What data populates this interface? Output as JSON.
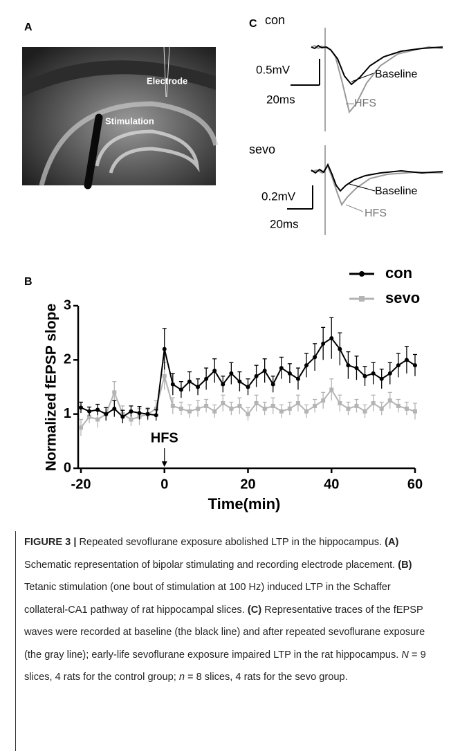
{
  "panels": {
    "a": "A",
    "b": "B",
    "c": "C"
  },
  "panel_a": {
    "labels": [
      "Electrode",
      "Stimulation"
    ]
  },
  "panel_c": {
    "con": {
      "title": "con",
      "scale_v": "0.5mV",
      "scale_t": "20ms",
      "baseline": "Baseline",
      "hfs": "HFS"
    },
    "sevo": {
      "title": "sevo",
      "scale_v": "0.2mV",
      "scale_t": "20ms",
      "baseline": "Baseline",
      "hfs": "HFS"
    }
  },
  "chart_data": {
    "type": "line",
    "x_label": "Time(min)",
    "y_label": "Normalized fEPSP slope",
    "x": [
      -20,
      -18,
      -16,
      -14,
      -12,
      -10,
      -8,
      -6,
      -4,
      -2,
      0,
      2,
      4,
      6,
      8,
      10,
      12,
      14,
      16,
      18,
      20,
      22,
      24,
      26,
      28,
      30,
      32,
      34,
      36,
      38,
      40,
      42,
      44,
      46,
      48,
      50,
      52,
      54,
      56,
      58,
      60
    ],
    "series": [
      {
        "name": "con",
        "color": "#000000",
        "marker": "circle",
        "values": [
          1.12,
          1.05,
          1.08,
          1.0,
          1.1,
          0.95,
          1.05,
          1.02,
          1.0,
          0.98,
          2.2,
          1.55,
          1.45,
          1.6,
          1.5,
          1.65,
          1.8,
          1.55,
          1.75,
          1.6,
          1.5,
          1.7,
          1.8,
          1.55,
          1.85,
          1.75,
          1.65,
          1.9,
          2.05,
          2.3,
          2.4,
          2.2,
          1.9,
          1.85,
          1.7,
          1.75,
          1.65,
          1.75,
          1.9,
          2.0,
          1.9
        ],
        "errors": [
          0.1,
          0.08,
          0.1,
          0.12,
          0.15,
          0.12,
          0.1,
          0.12,
          0.1,
          0.1,
          0.38,
          0.2,
          0.15,
          0.18,
          0.15,
          0.2,
          0.22,
          0.15,
          0.2,
          0.18,
          0.15,
          0.2,
          0.22,
          0.15,
          0.2,
          0.18,
          0.2,
          0.22,
          0.25,
          0.3,
          0.38,
          0.3,
          0.25,
          0.22,
          0.18,
          0.2,
          0.18,
          0.2,
          0.22,
          0.25,
          0.2
        ]
      },
      {
        "name": "sevo",
        "color": "#b4b4b4",
        "marker": "square",
        "values": [
          0.75,
          0.95,
          0.9,
          1.0,
          1.4,
          1.0,
          0.9,
          0.95,
          1.0,
          1.1,
          1.7,
          1.15,
          1.1,
          1.05,
          1.1,
          1.15,
          1.05,
          1.2,
          1.1,
          1.15,
          1.0,
          1.2,
          1.1,
          1.15,
          1.05,
          1.1,
          1.2,
          1.05,
          1.15,
          1.25,
          1.45,
          1.2,
          1.1,
          1.15,
          1.05,
          1.2,
          1.1,
          1.25,
          1.15,
          1.1,
          1.05
        ],
        "errors": [
          0.15,
          0.12,
          0.15,
          0.12,
          0.2,
          0.15,
          0.12,
          0.15,
          0.12,
          0.15,
          0.25,
          0.15,
          0.12,
          0.12,
          0.15,
          0.12,
          0.12,
          0.15,
          0.12,
          0.15,
          0.12,
          0.15,
          0.12,
          0.15,
          0.12,
          0.12,
          0.15,
          0.12,
          0.12,
          0.15,
          0.2,
          0.15,
          0.12,
          0.12,
          0.12,
          0.15,
          0.12,
          0.15,
          0.12,
          0.12,
          0.15
        ]
      }
    ],
    "xlim": [
      -20,
      60
    ],
    "xticks": [
      -20,
      0,
      20,
      40,
      60
    ],
    "ylim": [
      0,
      3
    ],
    "yticks": [
      0,
      1,
      2,
      3
    ],
    "legend": "top-right",
    "annotation": {
      "text": "HFS",
      "x": 0
    }
  },
  "caption": [
    "FIGURE 3 |",
    " Repeated sevoflurane exposure abolished LTP in the hippocampus. ",
    "(A)",
    " Schematic representation of bipolar stimulating and recording electrode placement. ",
    "(B)",
    " Tetanic stimulation (one bout of stimulation at 100 Hz) induced LTP in the Schaffer collateral-CA1 pathway of rat hippocampal slices. ",
    "(C)",
    " Representative traces of the fEPSP waves were recorded at baseline (the black line) and after repeated sevoflurane exposure (the gray line); early-life sevoflurane exposure impaired LTP in the rat hippocampus. ",
    "N",
    " = 9 slices, 4 rats for the control group; ",
    "n",
    " = 8 slices, 4 rats for the sevo group."
  ]
}
